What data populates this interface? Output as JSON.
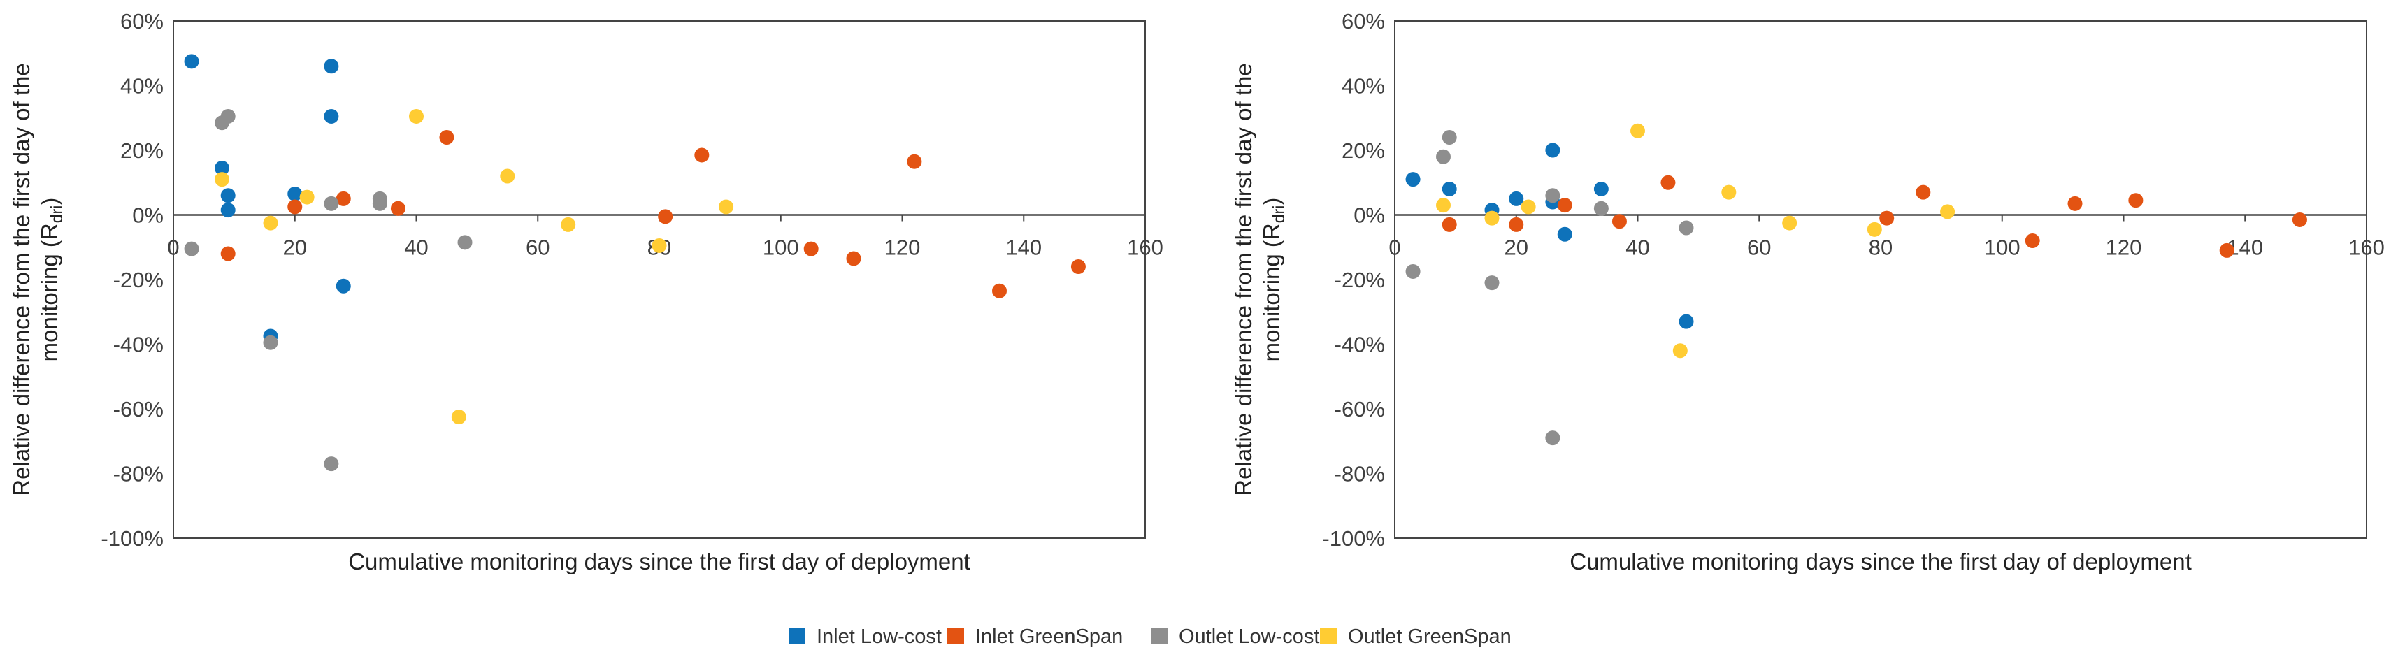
{
  "chart_data": [
    {
      "type": "scatter",
      "xlabel": "Cumulative monitoring days since the first day of deployment",
      "ylabel_lines": [
        "Relative difference from the first day of the",
        "monitoring (R",
        "dri",
        ")"
      ],
      "xlim": [
        0,
        160
      ],
      "ylim": [
        -100,
        60
      ],
      "xticks": [
        "0",
        "20",
        "40",
        "60",
        "80",
        "100",
        "120",
        "140",
        "160"
      ],
      "yticks": [
        "60%",
        "40%",
        "20%",
        "0%",
        "-20%",
        "-40%",
        "-60%",
        "-80%",
        "-100%"
      ],
      "series": [
        {
          "name": "Inlet Low-cost",
          "color": "#0E72BA",
          "points": [
            [
              3,
              47.5
            ],
            [
              8,
              14.5
            ],
            [
              9,
              6
            ],
            [
              9,
              1.5
            ],
            [
              16,
              -37.5
            ],
            [
              20,
              6.5
            ],
            [
              26,
              46
            ],
            [
              26,
              30.5
            ],
            [
              28,
              -22
            ]
          ]
        },
        {
          "name": "Inlet GreenSpan",
          "color": "#E35312",
          "points": [
            [
              9,
              -12
            ],
            [
              20,
              2.5
            ],
            [
              28,
              5
            ],
            [
              37,
              2
            ],
            [
              45,
              24
            ],
            [
              81,
              -0.5
            ],
            [
              87,
              18.5
            ],
            [
              105,
              -10.5
            ],
            [
              112,
              -13.5
            ],
            [
              122,
              16.5
            ],
            [
              136,
              -23.5
            ],
            [
              149,
              -16
            ]
          ]
        },
        {
          "name": "Outlet Low-cost",
          "color": "#8E8E8E",
          "points": [
            [
              3,
              -10.5
            ],
            [
              8,
              28.5
            ],
            [
              9,
              30.5
            ],
            [
              16,
              -39.5
            ],
            [
              26,
              3.5
            ],
            [
              26,
              -77
            ],
            [
              34,
              5
            ],
            [
              34,
              3.5
            ],
            [
              48,
              -8.5
            ]
          ]
        },
        {
          "name": "Outlet GreenSpan",
          "color": "#FFCC33",
          "points": [
            [
              8,
              11
            ],
            [
              16,
              -2.5
            ],
            [
              22,
              5.5
            ],
            [
              40,
              30.5
            ],
            [
              47,
              -62.5
            ],
            [
              55,
              12
            ],
            [
              65,
              -3
            ],
            [
              80,
              -9.5
            ],
            [
              91,
              2.5
            ]
          ]
        }
      ]
    },
    {
      "type": "scatter",
      "xlabel": "Cumulative monitoring days since the first day of deployment",
      "ylabel_lines": [
        "Relative difference from the first day of the",
        "monitoring (R",
        "dri",
        ")"
      ],
      "xlim": [
        0,
        160
      ],
      "ylim": [
        -100,
        60
      ],
      "xticks": [
        "0",
        "20",
        "40",
        "60",
        "80",
        "100",
        "120",
        "140",
        "160"
      ],
      "yticks": [
        "60%",
        "40%",
        "20%",
        "0%",
        "-20%",
        "-40%",
        "-60%",
        "-80%",
        "-100%"
      ],
      "series": [
        {
          "name": "Inlet Low-cost",
          "color": "#0E72BA",
          "points": [
            [
              3,
              11
            ],
            [
              9,
              8
            ],
            [
              16,
              1.5
            ],
            [
              20,
              5
            ],
            [
              26,
              20
            ],
            [
              26,
              4
            ],
            [
              28,
              -6
            ],
            [
              34,
              8
            ],
            [
              48,
              -33
            ]
          ]
        },
        {
          "name": "Inlet GreenSpan",
          "color": "#E35312",
          "points": [
            [
              9,
              -3
            ],
            [
              20,
              -3
            ],
            [
              28,
              3
            ],
            [
              37,
              -2
            ],
            [
              45,
              10
            ],
            [
              81,
              -1
            ],
            [
              87,
              7
            ],
            [
              105,
              -8
            ],
            [
              112,
              3.5
            ],
            [
              122,
              4.5
            ],
            [
              137,
              -11
            ],
            [
              149,
              -1.5
            ]
          ]
        },
        {
          "name": "Outlet Low-cost",
          "color": "#8E8E8E",
          "points": [
            [
              3,
              -17.5
            ],
            [
              8,
              18
            ],
            [
              9,
              24
            ],
            [
              16,
              -21
            ],
            [
              26,
              6
            ],
            [
              26,
              -69
            ],
            [
              34,
              2
            ],
            [
              48,
              -4
            ]
          ]
        },
        {
          "name": "Outlet GreenSpan",
          "color": "#FFCC33",
          "points": [
            [
              8,
              3
            ],
            [
              16,
              -1
            ],
            [
              22,
              2.5
            ],
            [
              40,
              26
            ],
            [
              47,
              -42
            ],
            [
              55,
              7
            ],
            [
              65,
              -2.5
            ],
            [
              79,
              -4.5
            ],
            [
              91,
              1
            ]
          ]
        }
      ]
    }
  ],
  "legend": [
    {
      "label": "Inlet Low-cost",
      "color": "#0E72BA"
    },
    {
      "label": "Inlet GreenSpan",
      "color": "#E35312"
    },
    {
      "label": "Outlet Low-cost",
      "color": "#8E8E8E"
    },
    {
      "label": "Outlet GreenSpan",
      "color": "#FFCC33"
    }
  ]
}
